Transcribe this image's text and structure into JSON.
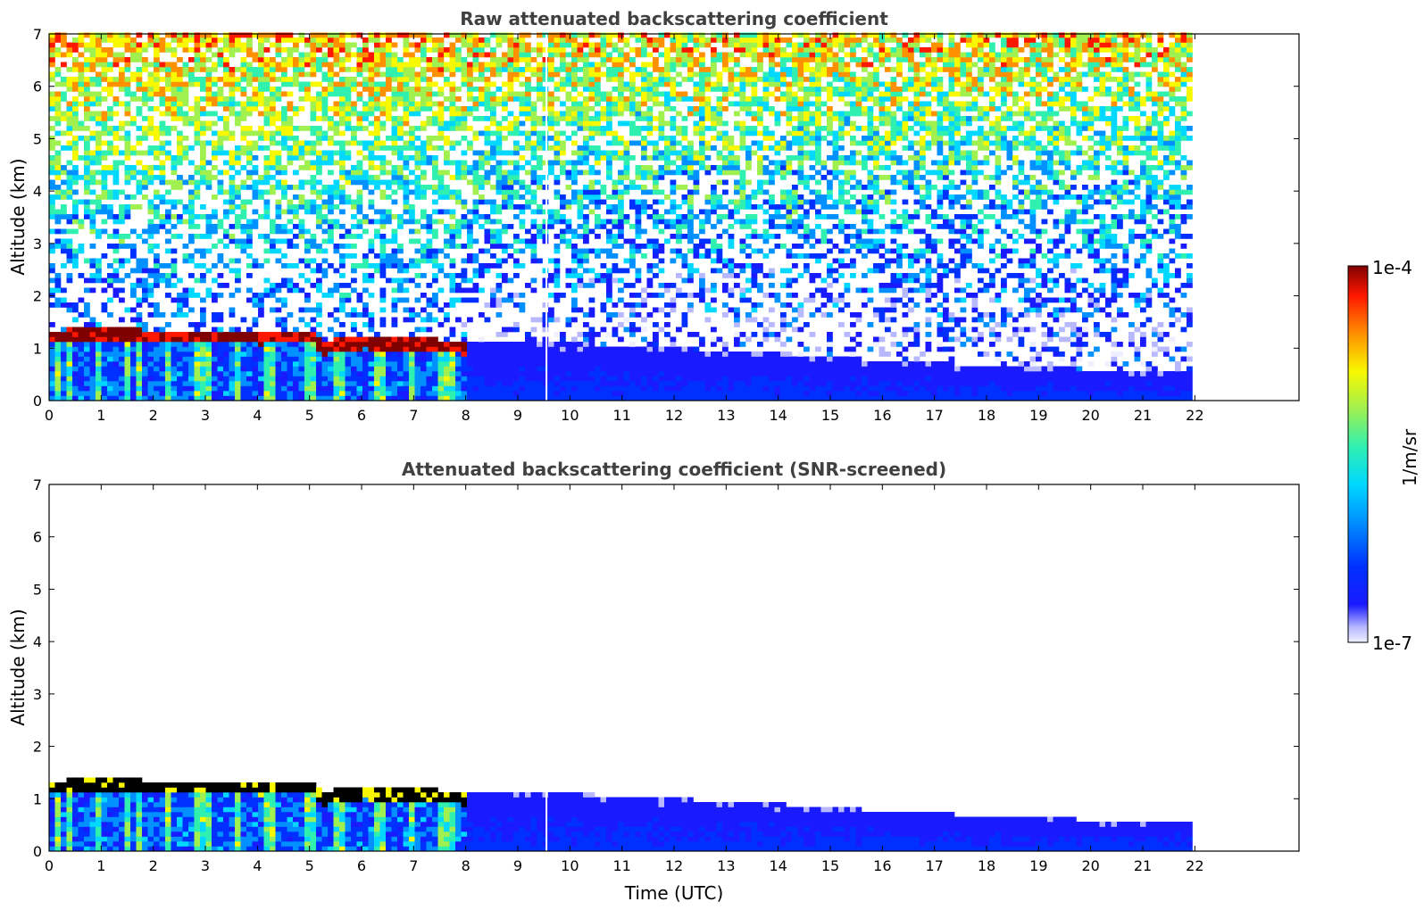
{
  "chart_data": [
    {
      "type": "heatmap",
      "title": "Raw attenuated backscattering coefficient",
      "xlabel": "",
      "ylabel": "Altitude (km)",
      "xlim": [
        0,
        24
      ],
      "ylim": [
        0,
        7
      ],
      "x_ticks": [
        "0",
        "1",
        "2",
        "3",
        "4",
        "5",
        "6",
        "7",
        "8",
        "9",
        "10",
        "11",
        "12",
        "13",
        "14",
        "15",
        "16",
        "17",
        "18",
        "19",
        "20",
        "21",
        "22"
      ],
      "y_ticks": [
        "0",
        "1",
        "2",
        "3",
        "4",
        "5",
        "6",
        "7"
      ],
      "data_extent_x": [
        0,
        21.9
      ],
      "data_gap_x": 9.55,
      "cloud_layer": {
        "x": [
          0,
          0.5,
          1,
          1.5,
          2,
          2.5,
          3,
          3.5,
          4,
          4.5,
          5,
          5.2,
          5.5,
          6,
          6.5,
          7,
          7.5,
          7.9
        ],
        "altitude_km": [
          1.2,
          1.22,
          1.24,
          1.22,
          1.2,
          1.21,
          1.2,
          1.18,
          1.17,
          1.18,
          1.2,
          0.95,
          1.05,
          1.08,
          1.06,
          1.04,
          1.02,
          0.98
        ]
      },
      "boundary_layer_top": {
        "x": [
          8,
          10,
          12,
          14,
          16,
          18,
          20,
          21.9
        ],
        "altitude_km": [
          1.1,
          1.05,
          0.95,
          0.85,
          0.72,
          0.62,
          0.55,
          0.52
        ]
      }
    },
    {
      "type": "heatmap",
      "title": "Attenuated backscattering coefficient (SNR-screened)",
      "xlabel": "Time (UTC)",
      "ylabel": "Altitude (km)",
      "xlim": [
        0,
        24
      ],
      "ylim": [
        0,
        7
      ],
      "x_ticks": [
        "0",
        "1",
        "2",
        "3",
        "4",
        "5",
        "6",
        "7",
        "8",
        "9",
        "10",
        "11",
        "12",
        "13",
        "14",
        "15",
        "16",
        "17",
        "18",
        "19",
        "20",
        "21",
        "22"
      ],
      "y_ticks": [
        "0",
        "1",
        "2",
        "3",
        "4",
        "5",
        "6",
        "7"
      ],
      "data_extent_x": [
        0,
        21.9
      ],
      "data_gap_x": 9.55
    }
  ],
  "colorbar": {
    "label": "1/m/sr",
    "max_label": "1e-4",
    "min_label": "1e-7",
    "colormap": "jet"
  }
}
